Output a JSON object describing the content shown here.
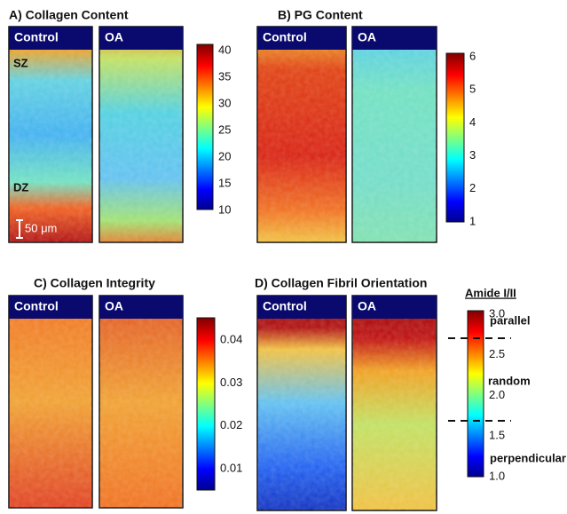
{
  "panels": [
    {
      "title": "A) Collagen Content",
      "images": [
        "Control",
        "OA"
      ],
      "colorbar": [
        "40",
        "35",
        "30",
        "25",
        "20",
        "15",
        "10"
      ],
      "annotations": [
        "SZ",
        "DZ",
        "50 μm"
      ]
    },
    {
      "title": "B) PG Content",
      "images": [
        "Control",
        "OA"
      ],
      "colorbar": [
        "6",
        "5",
        "4",
        "3",
        "2",
        "1"
      ]
    },
    {
      "title": "C) Collagen Integrity",
      "images": [
        "Control",
        "OA"
      ],
      "colorbar": [
        "0.04",
        "0.03",
        "0.02",
        "0.01"
      ]
    },
    {
      "title": "D) Collagen Fibril Orientation",
      "images": [
        "Control",
        "OA"
      ],
      "colorbar": [
        "3.0",
        "2.5",
        "2.0",
        "1.5",
        "1.0"
      ],
      "colorbar_title": "Amide I/II",
      "orientation_labels": [
        "parallel",
        "random",
        "perpendicular"
      ]
    }
  ]
}
